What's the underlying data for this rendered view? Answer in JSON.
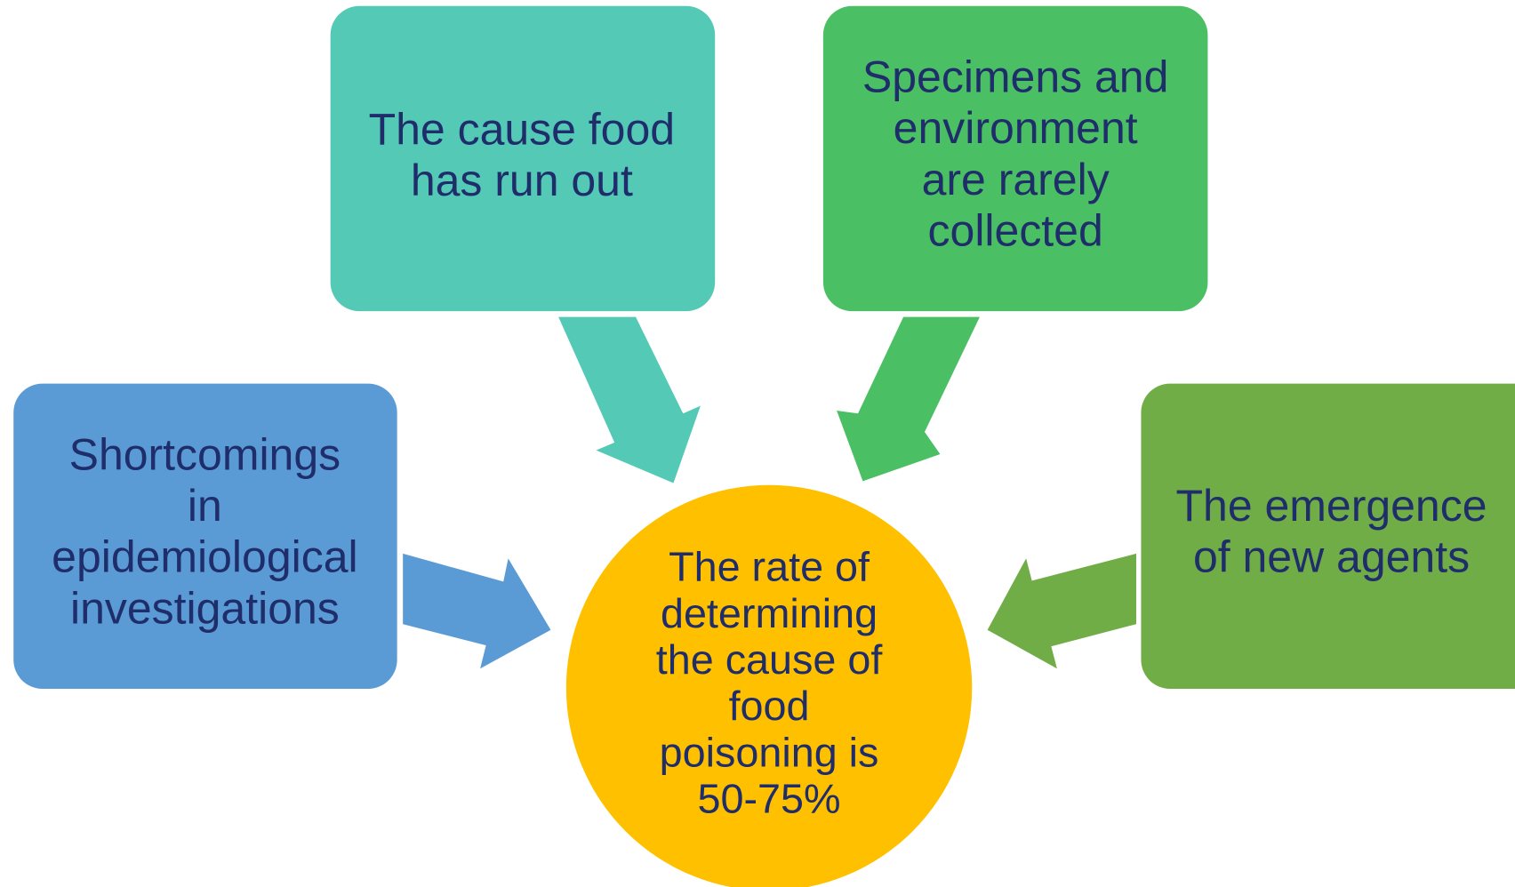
{
  "center": {
    "lines": [
      "The rate of",
      "determining",
      "the cause of",
      "food",
      "poisoning is",
      "50-75%"
    ]
  },
  "nodes": [
    {
      "lines": [
        "The cause food",
        "has run out"
      ]
    },
    {
      "lines": [
        "Specimens and",
        "environment",
        "are rarely",
        "collected"
      ]
    },
    {
      "lines": [
        "Shortcomings",
        "in",
        "epidemiological",
        "investigations"
      ]
    },
    {
      "lines": [
        "The emergence",
        "of new agents"
      ]
    }
  ]
}
